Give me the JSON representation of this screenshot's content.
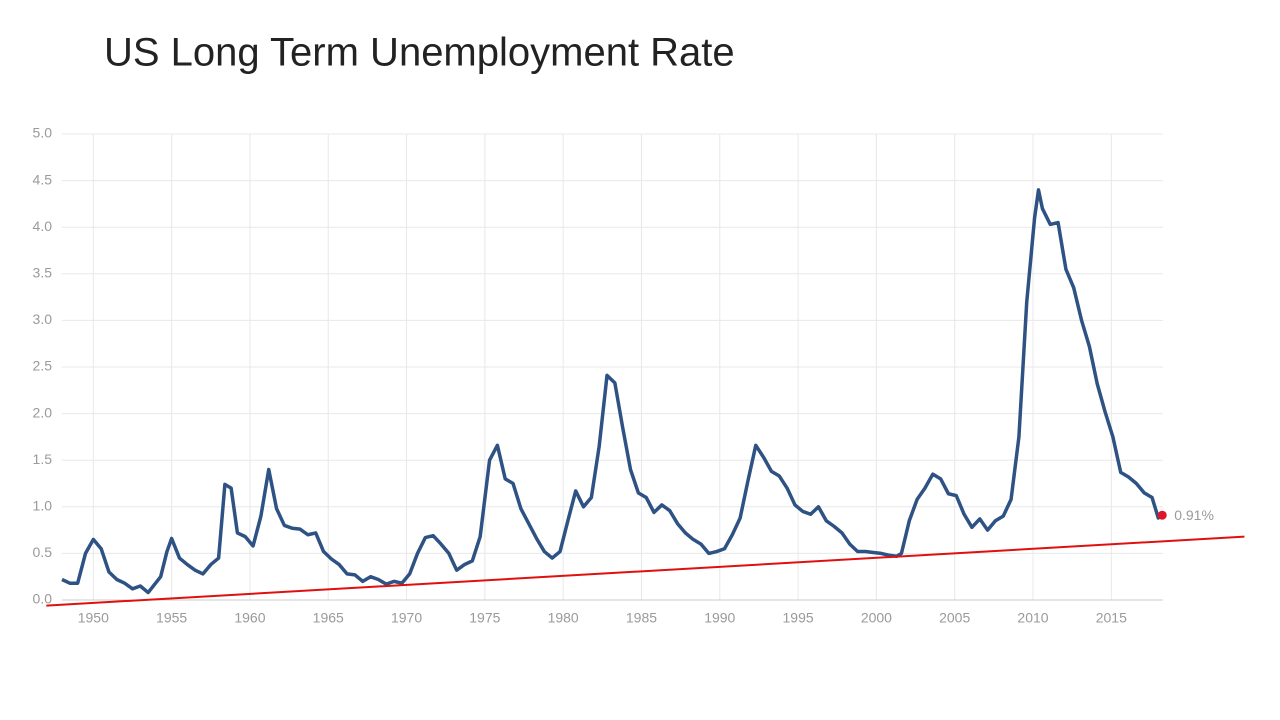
{
  "chart_data": {
    "type": "line",
    "title": "US Long Term Unemployment Rate",
    "color": "#2e5283",
    "x": [
      1948.0,
      1948.5,
      1949.0,
      1949.5,
      1950.0,
      1950.5,
      1951.0,
      1951.5,
      1952.0,
      1952.5,
      1953.0,
      1953.5,
      1954.3,
      1954.7,
      1955.0,
      1955.5,
      1956.0,
      1956.5,
      1957.0,
      1957.5,
      1958.0,
      1958.4,
      1958.8,
      1959.2,
      1959.7,
      1960.2,
      1960.7,
      1961.2,
      1961.7,
      1962.2,
      1962.7,
      1963.2,
      1963.7,
      1964.2,
      1964.7,
      1965.2,
      1965.7,
      1966.2,
      1966.7,
      1967.2,
      1967.7,
      1968.2,
      1968.7,
      1969.2,
      1969.7,
      1970.2,
      1970.7,
      1971.2,
      1971.7,
      1972.2,
      1972.7,
      1973.2,
      1973.7,
      1974.2,
      1974.7,
      1975.3,
      1975.8,
      1976.3,
      1976.8,
      1977.3,
      1977.8,
      1978.3,
      1978.8,
      1979.3,
      1979.8,
      1980.3,
      1980.8,
      1981.3,
      1981.8,
      1982.3,
      1982.8,
      1983.3,
      1983.8,
      1984.3,
      1984.8,
      1985.3,
      1985.8,
      1986.3,
      1986.8,
      1987.3,
      1987.8,
      1988.3,
      1988.8,
      1989.3,
      1989.8,
      1990.3,
      1990.8,
      1991.3,
      1991.8,
      1992.3,
      1992.8,
      1993.3,
      1993.8,
      1994.3,
      1994.8,
      1995.3,
      1995.8,
      1996.3,
      1996.8,
      1997.3,
      1997.8,
      1998.3,
      1998.8,
      1999.3,
      1999.8,
      2000.3,
      2000.8,
      2001.3,
      2001.6,
      2002.1,
      2002.6,
      2003.1,
      2003.6,
      2004.1,
      2004.6,
      2005.1,
      2005.6,
      2006.1,
      2006.6,
      2007.1,
      2007.6,
      2008.1,
      2008.6,
      2009.1,
      2009.6,
      2010.1,
      2010.35,
      2010.6,
      2011.1,
      2011.6,
      2012.1,
      2012.6,
      2013.1,
      2013.6,
      2014.1,
      2014.6,
      2015.1,
      2015.6,
      2016.1,
      2016.6,
      2017.1,
      2017.6,
      2018.0,
      2018.25
    ],
    "values": [
      0.22,
      0.18,
      0.18,
      0.5,
      0.65,
      0.55,
      0.3,
      0.22,
      0.18,
      0.12,
      0.15,
      0.08,
      0.25,
      0.52,
      0.66,
      0.45,
      0.38,
      0.32,
      0.28,
      0.38,
      0.45,
      1.24,
      1.2,
      0.72,
      0.68,
      0.58,
      0.9,
      1.4,
      0.98,
      0.8,
      0.77,
      0.76,
      0.7,
      0.72,
      0.52,
      0.44,
      0.38,
      0.28,
      0.27,
      0.2,
      0.25,
      0.22,
      0.17,
      0.2,
      0.18,
      0.28,
      0.5,
      0.67,
      0.69,
      0.6,
      0.5,
      0.32,
      0.38,
      0.42,
      0.68,
      1.5,
      1.66,
      1.3,
      1.25,
      0.98,
      0.82,
      0.66,
      0.52,
      0.45,
      0.52,
      0.85,
      1.17,
      1.0,
      1.1,
      1.65,
      2.41,
      2.33,
      1.85,
      1.4,
      1.15,
      1.1,
      0.94,
      1.02,
      0.96,
      0.82,
      0.72,
      0.65,
      0.6,
      0.5,
      0.52,
      0.55,
      0.7,
      0.88,
      1.28,
      1.66,
      1.53,
      1.38,
      1.33,
      1.2,
      1.02,
      0.95,
      0.92,
      1.0,
      0.85,
      0.79,
      0.72,
      0.6,
      0.52,
      0.52,
      0.51,
      0.5,
      0.48,
      0.47,
      0.5,
      0.85,
      1.08,
      1.2,
      1.35,
      1.3,
      1.14,
      1.12,
      0.92,
      0.78,
      0.87,
      0.75,
      0.85,
      0.9,
      1.08,
      1.75,
      3.2,
      4.1,
      4.4,
      4.2,
      4.03,
      4.05,
      3.55,
      3.35,
      3.0,
      2.72,
      2.32,
      2.02,
      1.75,
      1.37,
      1.32,
      1.25,
      1.15,
      1.1,
      0.88,
      0.91
    ],
    "end_marker": {
      "x": [
        2018.25
      ],
      "values": [
        0.91
      ],
      "value_labels": [
        "0.91%"
      ],
      "color": "#e0162b"
    },
    "trend_line": {
      "x": [
        1947.0,
        2023.5
      ],
      "values": [
        -0.06,
        0.68
      ],
      "color": "#e01010"
    },
    "xlim": [
      1948,
      2018.3
    ],
    "ylim": [
      0,
      5
    ],
    "xticks": [
      1950,
      1955,
      1960,
      1965,
      1970,
      1975,
      1980,
      1985,
      1990,
      1995,
      2000,
      2005,
      2010,
      2015
    ],
    "yticks": [
      {
        "value": 0,
        "label": "0.0"
      },
      0.5,
      {
        "value": 1,
        "label": "1.0"
      },
      1.5,
      {
        "value": 2,
        "label": "2.0"
      },
      2.5,
      {
        "value": 3,
        "label": "3.0"
      },
      3.5,
      {
        "value": 4,
        "label": "4.0"
      },
      4.5,
      {
        "value": 5,
        "label": "5.0"
      }
    ],
    "grid": true
  }
}
